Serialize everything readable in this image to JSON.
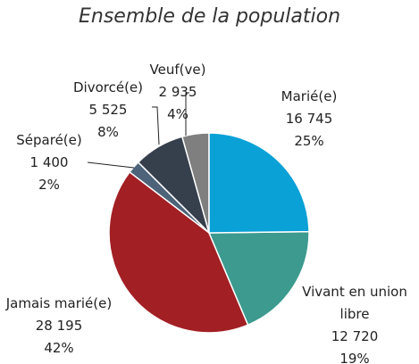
{
  "chart_data": {
    "type": "pie",
    "title": "Ensemble de la population",
    "categories": [
      "Marié(e)",
      "Vivant en union libre",
      "Jamais marié(e)",
      "Séparé(e)",
      "Divorcé(e)",
      "Veuf(ve)"
    ],
    "values": [
      16745,
      12720,
      28195,
      1400,
      5525,
      2935
    ],
    "value_labels": [
      "16 745",
      "12 720",
      "28 195",
      "1 400",
      "5 525",
      "2 935"
    ],
    "percent_labels": [
      "25%",
      "19%",
      "42%",
      "2%",
      "8%",
      "4%"
    ],
    "colors": [
      "#0aa1d6",
      "#3c9a8e",
      "#a21f24",
      "#4d6379",
      "#363f4c",
      "#7f7f7f"
    ]
  }
}
